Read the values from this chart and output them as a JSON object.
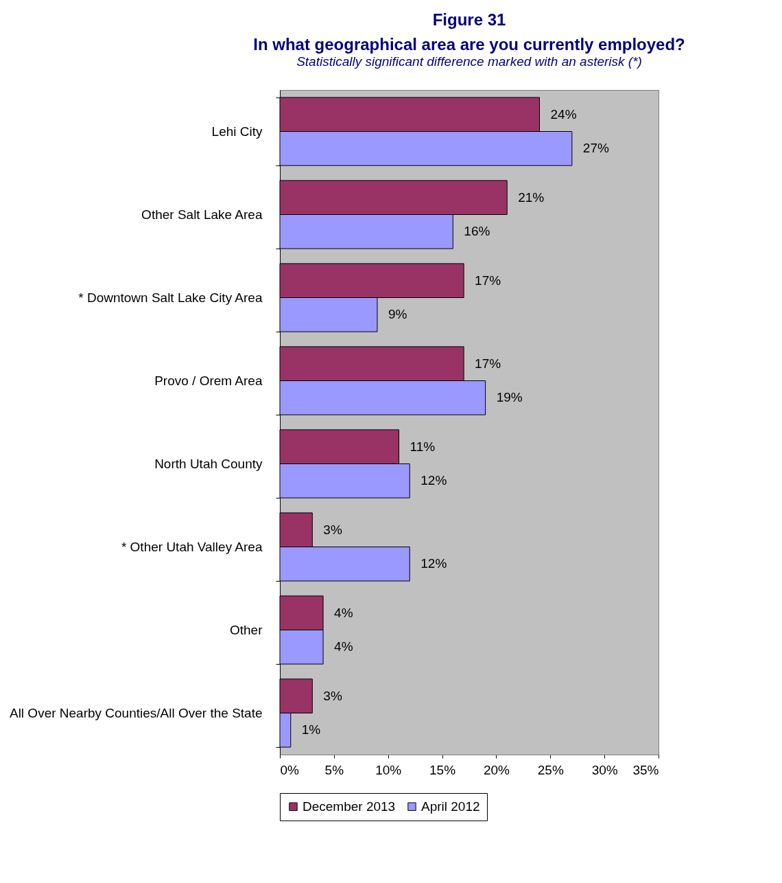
{
  "chart_data": {
    "type": "bar",
    "orientation": "horizontal",
    "title": "Figure 31\nIn what geographical area are you currently employed?",
    "subtitle": "Statistically significant difference marked with an asterisk (*)",
    "categories": [
      "Lehi City",
      "Other Salt Lake Area",
      "* Downtown Salt Lake City Area",
      "Provo / Orem Area",
      "North Utah County",
      "* Other Utah Valley Area",
      "Other",
      "All Over Nearby Counties/All Over the State"
    ],
    "series": [
      {
        "name": "December 2013",
        "color": "#993366",
        "values": [
          24,
          21,
          17,
          17,
          11,
          3,
          4,
          3
        ],
        "value_labels": [
          "24%",
          "21%",
          "17%",
          "17%",
          "11%",
          "3%",
          "4%",
          "3%"
        ]
      },
      {
        "name": "April 2012",
        "color": "#9999ff",
        "values": [
          27,
          16,
          9,
          19,
          12,
          12,
          4,
          1
        ],
        "value_labels": [
          "27%",
          "16%",
          "9%",
          "19%",
          "12%",
          "12%",
          "4%",
          "1%"
        ]
      }
    ],
    "xlim": [
      0,
      35
    ],
    "xticks": [
      {
        "value": 0,
        "label": "0%"
      },
      {
        "value": 5,
        "label": "5%"
      },
      {
        "value": 10,
        "label": "10%"
      },
      {
        "value": 15,
        "label": "15%"
      },
      {
        "value": 20,
        "label": "20%"
      },
      {
        "value": 25,
        "label": "25%"
      },
      {
        "value": 30,
        "label": "30%"
      },
      {
        "value": 35,
        "label": "35%"
      }
    ],
    "grid": false,
    "legend": "bottom"
  }
}
